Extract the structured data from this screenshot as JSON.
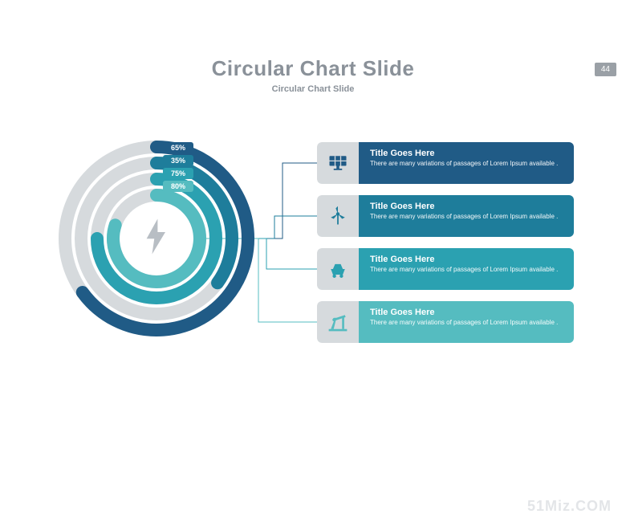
{
  "page_number": "44",
  "header": {
    "title": "Circular Chart Slide",
    "subtitle": "Circular Chart Slide"
  },
  "watermark": "51Miz.COM",
  "colors": {
    "track": "#d6dadd",
    "bg": "#ffffff",
    "title_text": "#8a9199",
    "icon_box": "#d6dadd",
    "center_icon": "#b8bec4"
  },
  "chart": {
    "type": "radial-progress",
    "center_icon": "lightning-bolt",
    "outer_radius": 122,
    "inner_radius": 42,
    "ring_width": 16,
    "ring_gap": 4,
    "label_font_size": 9,
    "rings": [
      {
        "percent": 65,
        "color": "#205b86",
        "label": "65%",
        "icon": "solar-panel"
      },
      {
        "percent": 35,
        "color": "#1e7d9b",
        "label": "35%",
        "icon": "wind-turbine"
      },
      {
        "percent": 75,
        "color": "#2ba1b1",
        "label": "75%",
        "icon": "mine-cart"
      },
      {
        "percent": 80,
        "color": "#55bcc0",
        "label": "80%",
        "icon": "oil-pump"
      }
    ]
  },
  "cards": [
    {
      "title": "Title Goes Here",
      "desc": "There are many variations of passages of Lorem Ipsum available .",
      "color": "#205b86",
      "icon": "solar-panel"
    },
    {
      "title": "Title Goes Here",
      "desc": "There are many variations of passages of Lorem Ipsum available .",
      "color": "#1e7d9b",
      "icon": "wind-turbine"
    },
    {
      "title": "Title Goes Here",
      "desc": "There are many variations of passages of Lorem Ipsum available .",
      "color": "#2ba1b1",
      "icon": "mine-cart"
    },
    {
      "title": "Title Goes Here",
      "desc": "There are many variations of passages of Lorem Ipsum available .",
      "color": "#55bcc0",
      "icon": "oil-pump"
    }
  ],
  "connectors": {
    "stroke": "#205b86",
    "stroke_width": 1
  }
}
